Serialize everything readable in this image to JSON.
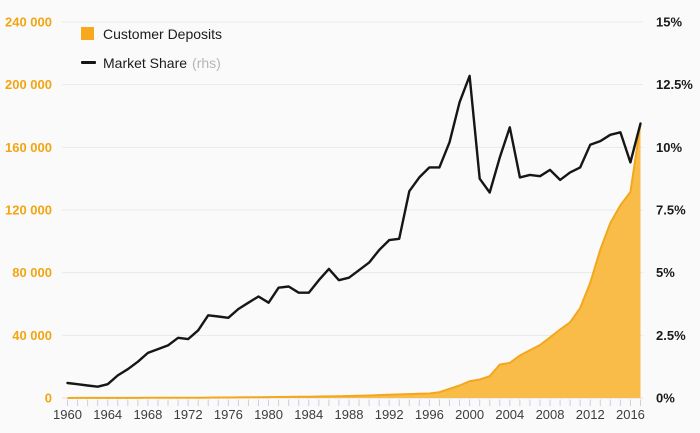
{
  "legend": {
    "deposits_label": "Customer Deposits",
    "market_share_label": "Market Share",
    "rhs_note": "(rhs)"
  },
  "colors": {
    "background": "#fafafa",
    "deposits_fill": "#f9bc49",
    "deposits_stroke": "#f3a71c",
    "deposits_legend": "#f8a81f",
    "market_share": "#161616",
    "left_axis_label": "#f2a513",
    "right_axis_label": "#1a1a1a",
    "x_axis_label": "#3d3d3d",
    "grid": "#e9e9e9",
    "zero_line": "#dedede",
    "tick": "#c9cfe6",
    "rhs_note": "#b5b5b5"
  },
  "chart_data": {
    "type": "area-line-combo",
    "title": "",
    "grid": true,
    "legend_position": "top-left",
    "x": [
      1960,
      1961,
      1962,
      1963,
      1964,
      1965,
      1966,
      1967,
      1968,
      1969,
      1970,
      1971,
      1972,
      1973,
      1974,
      1975,
      1976,
      1977,
      1978,
      1979,
      1980,
      1981,
      1982,
      1983,
      1984,
      1985,
      1986,
      1987,
      1988,
      1989,
      1990,
      1991,
      1992,
      1993,
      1994,
      1995,
      1996,
      1997,
      1998,
      1999,
      2000,
      2001,
      2002,
      2003,
      2004,
      2005,
      2006,
      2007,
      2008,
      2009,
      2010,
      2011,
      2012,
      2013,
      2014,
      2015,
      2016,
      2017
    ],
    "series": [
      {
        "name": "Customer Deposits",
        "type": "area",
        "axis": "left",
        "values": [
          30,
          35,
          40,
          45,
          50,
          60,
          70,
          85,
          100,
          115,
          135,
          160,
          185,
          220,
          260,
          300,
          340,
          390,
          440,
          500,
          560,
          630,
          700,
          780,
          860,
          950,
          1050,
          1150,
          1300,
          1450,
          1600,
          1850,
          2100,
          2300,
          2500,
          2700,
          2900,
          3700,
          5900,
          8000,
          10700,
          11800,
          13900,
          21400,
          22400,
          27100,
          30500,
          33800,
          38700,
          43700,
          48300,
          57500,
          73500,
          94700,
          111700,
          123000,
          131500,
          174500
        ]
      },
      {
        "name": "Market Share",
        "type": "line",
        "axis": "right",
        "unit": "%",
        "values": [
          0.6,
          0.55,
          0.5,
          0.45,
          0.55,
          0.9,
          1.15,
          1.45,
          1.8,
          1.95,
          2.1,
          2.4,
          2.35,
          2.7,
          3.3,
          3.25,
          3.2,
          3.55,
          3.8,
          4.05,
          3.8,
          4.4,
          4.45,
          4.2,
          4.2,
          4.7,
          5.15,
          4.7,
          4.8,
          5.1,
          5.4,
          5.9,
          6.3,
          6.35,
          8.25,
          8.8,
          9.2,
          9.2,
          10.2,
          11.8,
          12.85,
          8.75,
          8.2,
          9.6,
          10.8,
          8.8,
          8.9,
          8.85,
          9.1,
          8.7,
          9.0,
          9.2,
          10.1,
          10.25,
          10.5,
          10.6,
          9.4,
          10.95
        ]
      }
    ],
    "left_axis": {
      "min": 0,
      "max": 240000,
      "tick_values": [
        0,
        40000,
        80000,
        120000,
        160000,
        200000,
        240000
      ],
      "tick_labels": [
        "0",
        "40 000",
        "80 000",
        "120 000",
        "160 000",
        "200 000",
        "240 000"
      ]
    },
    "right_axis": {
      "min": 0,
      "max": 15,
      "tick_values": [
        0,
        2.5,
        5,
        7.5,
        10,
        12.5,
        15
      ],
      "tick_labels": [
        "0%",
        "2.5%",
        "5%",
        "7.5%",
        "10%",
        "12.5%",
        "15%"
      ]
    },
    "x_axis": {
      "range": [
        1960,
        2017
      ],
      "tick_every_year": true,
      "label_values": [
        1960,
        1964,
        1968,
        1972,
        1976,
        1980,
        1984,
        1988,
        1992,
        1996,
        2000,
        2004,
        2008,
        2012,
        2016
      ]
    }
  }
}
